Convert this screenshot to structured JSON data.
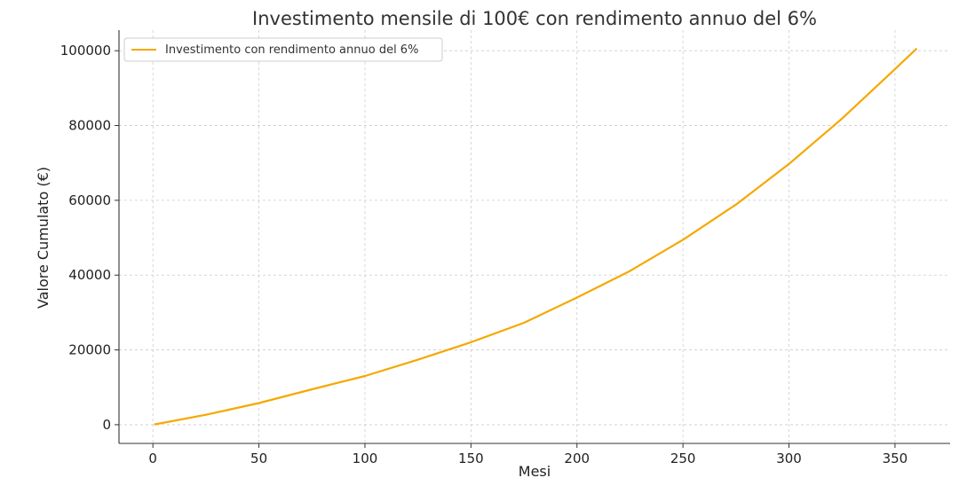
{
  "chart_data": {
    "type": "line",
    "title": "Investimento mensile di 100€ con rendimento annuo del 6%",
    "xlabel": "Mesi",
    "ylabel": "Valore Cumulato (€)",
    "xlim": [
      -16,
      376
    ],
    "ylim": [
      -5000,
      105500
    ],
    "xticks": [
      0,
      50,
      100,
      150,
      200,
      250,
      300,
      350
    ],
    "yticks": [
      0,
      20000,
      40000,
      60000,
      80000,
      100000
    ],
    "grid": true,
    "legend_position": "top-left",
    "series": [
      {
        "name": "Investimento con rendimento annuo del 6%",
        "color": "#f5a800",
        "x": [
          1,
          25,
          50,
          75,
          100,
          125,
          150,
          175,
          200,
          225,
          250,
          275,
          300,
          325,
          350,
          360
        ],
        "y": [
          100,
          2660,
          5800,
          9470,
          13010,
          17380,
          22060,
          27260,
          34010,
          41100,
          49450,
          58860,
          69720,
          81830,
          95100,
          100450
        ]
      }
    ]
  }
}
